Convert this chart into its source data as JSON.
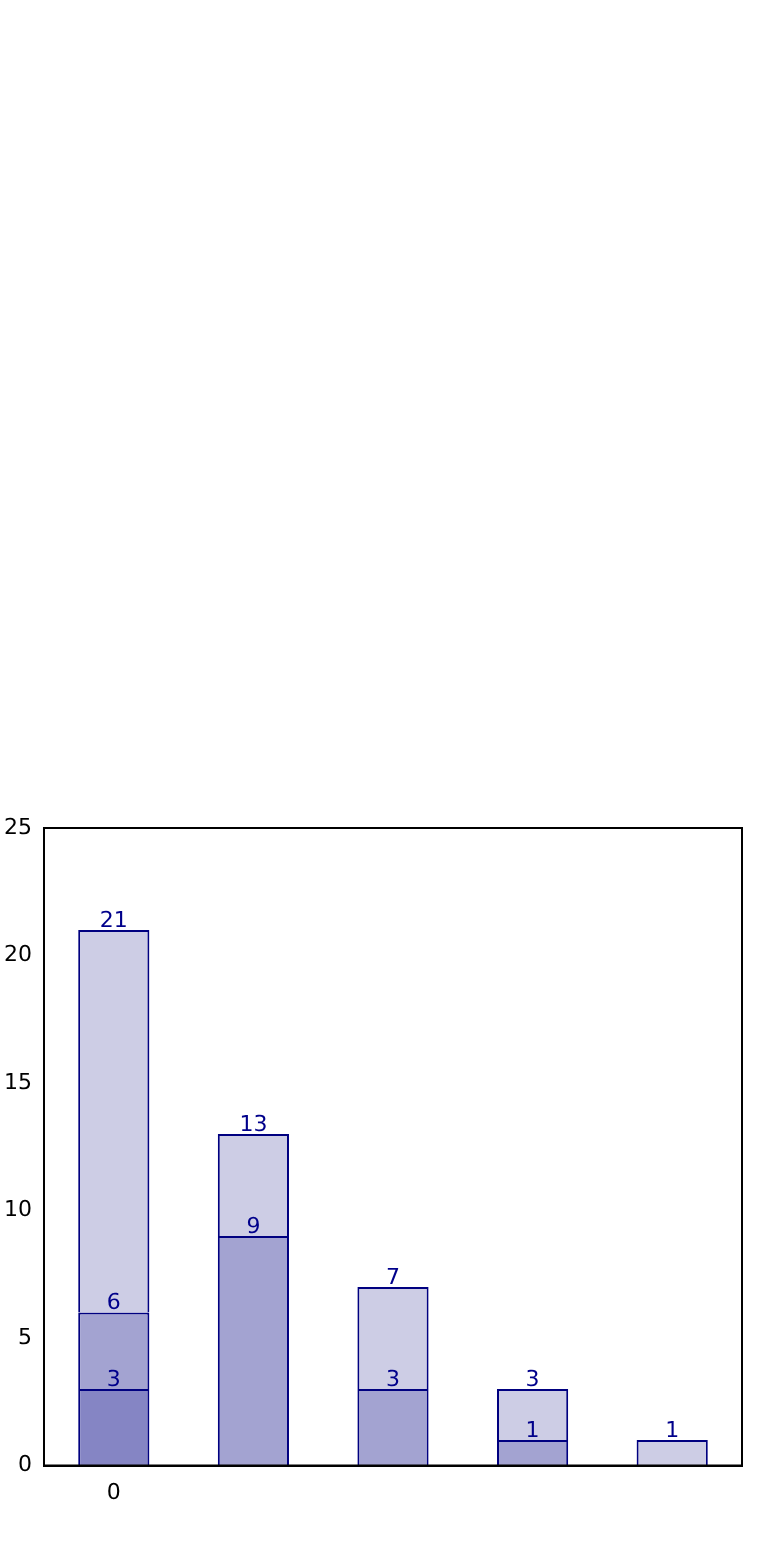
{
  "chart_data": {
    "type": "bar",
    "stacked": true,
    "categories": [
      "0",
      null,
      null,
      null,
      null
    ],
    "ylim": [
      0,
      25
    ],
    "yticks": [
      0,
      5,
      10,
      15,
      20,
      25
    ],
    "grid": false,
    "legend": false,
    "series": [
      {
        "color": "#8585c4",
        "values": [
          3,
          null,
          null,
          null,
          null
        ],
        "value_labels": [
          "3",
          null,
          null,
          null,
          null
        ]
      },
      {
        "color": "#a3a3d1",
        "values": [
          3,
          9,
          3,
          1,
          null
        ],
        "value_labels": [
          null,
          "9",
          "3",
          "1",
          null
        ]
      },
      {
        "color": "#cdcde5",
        "values": [
          15,
          4,
          4,
          2,
          1
        ]
      }
    ],
    "totals": [
      "21",
      "13",
      "7",
      "3",
      "1"
    ],
    "annotations": [
      {
        "text": "6",
        "x": "0",
        "y": 6
      }
    ]
  }
}
